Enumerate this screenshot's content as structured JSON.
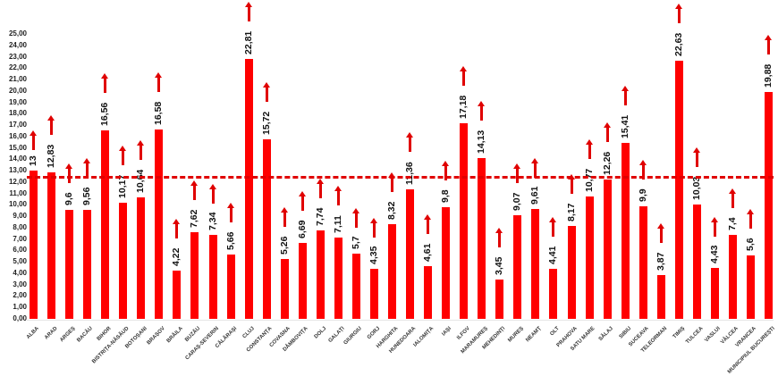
{
  "chart_data": {
    "type": "bar",
    "title": "",
    "xlabel": "",
    "ylabel": "",
    "ylim": [
      0,
      25
    ],
    "y_ticks": [
      "0,00",
      "1,00",
      "2,00",
      "3,00",
      "4,00",
      "5,00",
      "6,00",
      "7,00",
      "8,00",
      "9,00",
      "10,00",
      "11,00",
      "12,00",
      "13,00",
      "14,00",
      "15,00",
      "16,00",
      "17,00",
      "18,00",
      "19,00",
      "20,00",
      "21,00",
      "22,00",
      "23,00",
      "24,00",
      "25,00"
    ],
    "grid": false,
    "legend": null,
    "reference_line": {
      "value": 12.46,
      "style": "dashed",
      "color": "#e00000"
    },
    "bar_color": "#ff0000",
    "arrow_color": "#e00000",
    "categories": [
      "ALBA",
      "ARAD",
      "ARGEȘ",
      "BACĂU",
      "BIHOR",
      "BISTRIȚA-NĂSĂUD",
      "BOTOȘANI",
      "BRAȘOV",
      "BRĂILA",
      "BUZĂU",
      "CARAȘ-SEVERIN",
      "CĂLĂRAȘI",
      "CLUJ",
      "CONSTANȚA",
      "COVASNA",
      "DÂMBOVIȚA",
      "DOLJ",
      "GALAȚI",
      "GIURGIU",
      "GORJ",
      "HARGHITA",
      "HUNEDOARA",
      "IALOMIȚA",
      "IAȘI",
      "ILFOV",
      "MARAMUREȘ",
      "MEHEDINȚI",
      "MUREȘ",
      "NEAMȚ",
      "OLT",
      "PRAHOVA",
      "SATU MARE",
      "SĂLAJ",
      "SIBIU",
      "SUCEAVA",
      "TELEORMAN",
      "TIMIȘ",
      "TULCEA",
      "VASLUI",
      "VÂLCEA",
      "VRANCEA",
      "MUNICIPIUL BUCUREȘTI"
    ],
    "values": [
      13,
      12.83,
      9.6,
      9.56,
      16.56,
      10.17,
      10.64,
      16.58,
      4.22,
      7.62,
      7.34,
      5.66,
      22.81,
      15.72,
      5.26,
      6.69,
      7.74,
      7.11,
      5.7,
      4.35,
      8.32,
      11.36,
      4.61,
      9.8,
      17.18,
      14.13,
      3.45,
      9.07,
      9.61,
      4.41,
      8.17,
      10.77,
      12.26,
      15.41,
      9.9,
      3.87,
      22.63,
      10.03,
      4.43,
      7.4,
      5.6,
      19.88
    ],
    "value_labels": [
      "13",
      "12,83",
      "9,6",
      "9,56",
      "16,56",
      "10,17",
      "10,64",
      "16,58",
      "4,22",
      "7,62",
      "7,34",
      "5,66",
      "22,81",
      "15,72",
      "5,26",
      "6,69",
      "7,74",
      "7,11",
      "5,7",
      "4,35",
      "8,32",
      "11,36",
      "4,61",
      "9,8",
      "17,18",
      "14,13",
      "3,45",
      "9,07",
      "9,61",
      "4,41",
      "8,17",
      "10,77",
      "12,26",
      "15,41",
      "9,9",
      "3,87",
      "22,63",
      "10,03",
      "4,43",
      "7,4",
      "5,6",
      "19,88"
    ],
    "annotations": "Each bar has an upward-pointing red arrow above its rotated value label"
  }
}
